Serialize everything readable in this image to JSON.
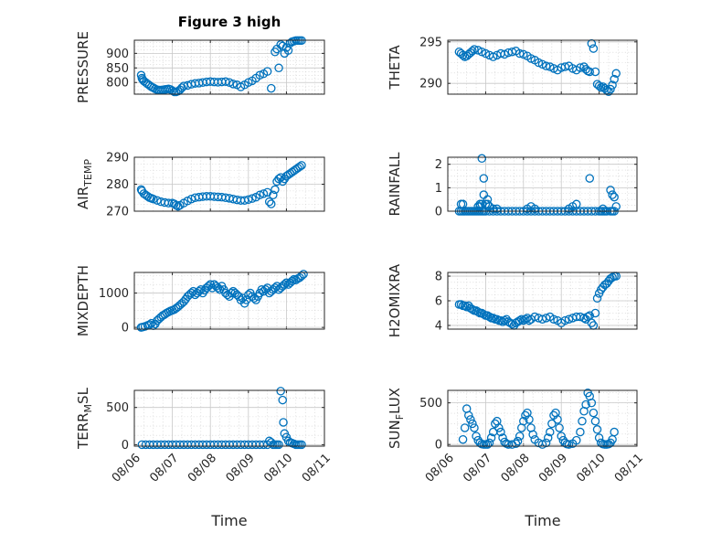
{
  "figure_title": "Figure 3 high",
  "x_axis_label": "Time",
  "x_tick_labels": [
    "08/06",
    "08/07",
    "08/08",
    "08/09",
    "08/10",
    "08/11"
  ],
  "colors": {
    "marker": "#0072BD",
    "axis": "#262626",
    "grid": "#c8c8c8"
  },
  "chart_data": [
    {
      "type": "scatter",
      "title": "Figure 3 high",
      "ylabel": "PRESSURE",
      "ylabel_sub": "",
      "xlim": [
        0,
        5
      ],
      "ylim": [
        760,
        945
      ],
      "yticks": [
        800,
        850,
        900
      ],
      "ytick_labels": [
        "800",
        "850",
        "900"
      ],
      "x": [
        0.18,
        0.2,
        0.22,
        0.25,
        0.3,
        0.35,
        0.4,
        0.45,
        0.5,
        0.55,
        0.6,
        0.65,
        0.7,
        0.75,
        0.8,
        0.85,
        0.9,
        0.95,
        1.0,
        1.05,
        1.1,
        1.15,
        1.2,
        1.25,
        1.3,
        1.4,
        1.5,
        1.6,
        1.7,
        1.8,
        1.9,
        2.0,
        2.1,
        2.2,
        2.3,
        2.4,
        2.5,
        2.6,
        2.7,
        2.8,
        2.9,
        3.0,
        3.1,
        3.2,
        3.3,
        3.4,
        3.5,
        3.6,
        3.7,
        3.75,
        3.8,
        3.85,
        3.9,
        3.95,
        4.0,
        4.05,
        4.1,
        4.15,
        4.2,
        4.25,
        4.3,
        4.35,
        4.4
      ],
      "y": [
        825,
        815,
        810,
        805,
        800,
        795,
        790,
        785,
        782,
        778,
        775,
        774,
        774,
        775,
        776,
        777,
        778,
        776,
        772,
        768,
        768,
        770,
        775,
        782,
        788,
        790,
        794,
        797,
        798,
        800,
        802,
        803,
        802,
        801,
        802,
        803,
        800,
        795,
        792,
        785,
        792,
        800,
        806,
        815,
        825,
        830,
        838,
        780,
        905,
        915,
        850,
        930,
        925,
        900,
        920,
        910,
        935,
        940,
        942,
        944,
        944,
        944,
        944
      ]
    },
    {
      "type": "scatter",
      "title": "",
      "ylabel": "THETA",
      "ylabel_sub": "",
      "xlim": [
        0,
        5
      ],
      "ylim": [
        288.7,
        295.2
      ],
      "yticks": [
        290,
        295
      ],
      "ytick_labels": [
        "290",
        "295"
      ],
      "x": [
        0.3,
        0.35,
        0.4,
        0.45,
        0.5,
        0.55,
        0.6,
        0.65,
        0.7,
        0.8,
        0.9,
        1.0,
        1.1,
        1.2,
        1.3,
        1.4,
        1.5,
        1.6,
        1.7,
        1.8,
        1.9,
        2.0,
        2.1,
        2.2,
        2.3,
        2.4,
        2.5,
        2.6,
        2.7,
        2.8,
        2.9,
        3.0,
        3.1,
        3.2,
        3.3,
        3.4,
        3.5,
        3.6,
        3.65,
        3.7,
        3.75,
        3.8,
        3.85,
        3.9,
        3.95,
        4.0,
        4.05,
        4.1,
        4.15,
        4.2,
        4.25,
        4.3,
        4.35,
        4.4,
        4.45
      ],
      "y": [
        293.8,
        293.6,
        293.4,
        293.2,
        293.3,
        293.5,
        293.7,
        293.9,
        294.1,
        294.0,
        293.8,
        293.6,
        293.4,
        293.2,
        293.4,
        293.6,
        293.5,
        293.7,
        293.8,
        293.9,
        293.6,
        293.5,
        293.3,
        293.0,
        292.8,
        292.5,
        292.3,
        292.1,
        292.0,
        291.8,
        291.6,
        291.9,
        292.0,
        292.1,
        291.8,
        291.6,
        291.9,
        292.0,
        291.7,
        291.5,
        291.4,
        294.8,
        294.2,
        291.4,
        289.9,
        289.7,
        289.5,
        289.6,
        289.4,
        289.2,
        289.0,
        289.3,
        289.8,
        290.5,
        291.2
      ]
    },
    {
      "type": "scatter",
      "title": "",
      "ylabel": "AIR",
      "ylabel_sub": "TEMP",
      "xlim": [
        0,
        5
      ],
      "ylim": [
        270,
        290
      ],
      "yticks": [
        270,
        280,
        290
      ],
      "ytick_labels": [
        "270",
        "280",
        "290"
      ],
      "x": [
        0.18,
        0.2,
        0.25,
        0.3,
        0.35,
        0.4,
        0.45,
        0.5,
        0.6,
        0.7,
        0.8,
        0.9,
        1.0,
        1.05,
        1.1,
        1.15,
        1.2,
        1.3,
        1.4,
        1.5,
        1.6,
        1.7,
        1.8,
        1.9,
        2.0,
        2.1,
        2.2,
        2.3,
        2.4,
        2.5,
        2.6,
        2.7,
        2.8,
        2.9,
        3.0,
        3.1,
        3.2,
        3.3,
        3.4,
        3.5,
        3.55,
        3.6,
        3.65,
        3.7,
        3.75,
        3.8,
        3.85,
        3.9,
        3.95,
        4.0,
        4.05,
        4.1,
        4.15,
        4.2,
        4.25,
        4.3,
        4.35,
        4.4
      ],
      "y": [
        278,
        277.5,
        276.5,
        276,
        275.5,
        275,
        274.8,
        274.5,
        274,
        273.5,
        273.2,
        273,
        273,
        272.7,
        272.2,
        271.8,
        272.2,
        273,
        273.8,
        274.5,
        275,
        275.2,
        275.4,
        275.5,
        275.5,
        275.4,
        275.3,
        275.2,
        275,
        274.8,
        274.5,
        274.2,
        274,
        274,
        274.3,
        274.7,
        275.2,
        276,
        276.5,
        277,
        273.5,
        272.7,
        276,
        278,
        281,
        282,
        282.5,
        281,
        282,
        283,
        283.5,
        284,
        284.5,
        285,
        285.5,
        286,
        286.5,
        287
      ]
    },
    {
      "type": "scatter",
      "title": "",
      "ylabel": "RAINFALL",
      "ylabel_sub": "",
      "xlim": [
        0,
        5
      ],
      "ylim": [
        0,
        2.3
      ],
      "yticks": [
        0,
        1,
        2
      ],
      "ytick_labels": [
        "0",
        "1",
        "2"
      ],
      "x": [
        0.3,
        0.35,
        0.4,
        0.45,
        0.5,
        0.55,
        0.6,
        0.65,
        0.7,
        0.75,
        0.8,
        0.85,
        0.9,
        0.95,
        1.0,
        1.1,
        1.2,
        1.3,
        1.4,
        1.5,
        1.6,
        1.7,
        1.8,
        1.9,
        2.0,
        2.1,
        2.2,
        2.3,
        2.4,
        2.5,
        2.6,
        2.7,
        2.8,
        2.9,
        3.0,
        3.1,
        3.2,
        3.3,
        3.4,
        3.5,
        3.6,
        3.7,
        3.8,
        3.9,
        4.0,
        4.05,
        4.1,
        4.15,
        4.2,
        4.3,
        4.35,
        4.4,
        0.35,
        0.4,
        0.8,
        0.85,
        0.9,
        0.95,
        1.0,
        1.05,
        1.1,
        1.2,
        1.3,
        2.1,
        2.2,
        2.3,
        3.2,
        3.3,
        3.4,
        3.75,
        4.3,
        4.35,
        4.4,
        4.45,
        4.1,
        0.9,
        0.95,
        1.05,
        0.85
      ],
      "y": [
        0,
        0,
        0,
        0,
        0,
        0,
        0,
        0,
        0,
        0,
        0,
        0,
        0,
        0,
        0,
        0,
        0,
        0,
        0,
        0,
        0,
        0,
        0,
        0,
        0,
        0,
        0,
        0,
        0,
        0,
        0,
        0,
        0,
        0,
        0,
        0,
        0,
        0,
        0,
        0,
        0,
        0,
        0,
        0,
        0,
        0,
        0,
        0,
        0,
        0,
        0,
        0,
        0.3,
        0.3,
        0.2,
        0.3,
        2.25,
        1.4,
        0.3,
        0.5,
        0.2,
        0.1,
        0.1,
        0.1,
        0.2,
        0.1,
        0.1,
        0.2,
        0.3,
        1.4,
        0.9,
        0.7,
        0.6,
        0.2,
        0.1,
        0.3,
        0.7,
        0.3,
        0.2
      ]
    },
    {
      "type": "scatter",
      "title": "",
      "ylabel": "MIXDEPTH",
      "ylabel_sub": "",
      "xlim": [
        0,
        5
      ],
      "ylim": [
        -50,
        1600
      ],
      "yticks": [
        0,
        1000
      ],
      "ytick_labels": [
        "0",
        "1000"
      ],
      "x": [
        0.18,
        0.22,
        0.28,
        0.35,
        0.4,
        0.45,
        0.5,
        0.55,
        0.6,
        0.65,
        0.7,
        0.75,
        0.8,
        0.85,
        0.9,
        0.95,
        1.0,
        1.05,
        1.1,
        1.15,
        1.2,
        1.25,
        1.3,
        1.35,
        1.4,
        1.45,
        1.5,
        1.55,
        1.6,
        1.65,
        1.7,
        1.75,
        1.8,
        1.85,
        1.9,
        1.95,
        2.0,
        2.05,
        2.1,
        2.15,
        2.2,
        2.25,
        2.3,
        2.35,
        2.4,
        2.45,
        2.5,
        2.55,
        2.6,
        2.65,
        2.7,
        2.75,
        2.8,
        2.85,
        2.9,
        2.95,
        3.0,
        3.05,
        3.1,
        3.15,
        3.2,
        3.25,
        3.3,
        3.35,
        3.4,
        3.45,
        3.5,
        3.55,
        3.6,
        3.65,
        3.7,
        3.75,
        3.8,
        3.85,
        3.9,
        3.95,
        4.0,
        4.05,
        4.1,
        4.15,
        4.2,
        4.25,
        4.3,
        4.35,
        4.4,
        4.45
      ],
      "y": [
        0,
        10,
        30,
        60,
        80,
        120,
        50,
        100,
        200,
        250,
        300,
        350,
        380,
        420,
        450,
        480,
        500,
        520,
        560,
        600,
        650,
        700,
        750,
        820,
        900,
        950,
        1000,
        1050,
        950,
        1000,
        1050,
        1100,
        1000,
        1080,
        1150,
        1200,
        1250,
        1150,
        1250,
        1200,
        1150,
        1100,
        1200,
        1100,
        1000,
        950,
        900,
        1000,
        1050,
        1000,
        950,
        900,
        800,
        850,
        700,
        800,
        950,
        1000,
        900,
        850,
        800,
        900,
        1000,
        1100,
        1050,
        1100,
        1150,
        1000,
        1050,
        1100,
        1150,
        1200,
        1100,
        1150,
        1200,
        1250,
        1300,
        1250,
        1300,
        1350,
        1400,
        1380,
        1420,
        1450,
        1500,
        1550
      ]
    },
    {
      "type": "scatter",
      "title": "",
      "ylabel": "H2OMIXRA",
      "ylabel_sub": "",
      "xlim": [
        0,
        5
      ],
      "ylim": [
        3.7,
        8.3
      ],
      "yticks": [
        4,
        6,
        8
      ],
      "ytick_labels": [
        "4",
        "6",
        "8"
      ],
      "x": [
        0.3,
        0.35,
        0.4,
        0.45,
        0.5,
        0.55,
        0.6,
        0.65,
        0.7,
        0.75,
        0.8,
        0.85,
        0.9,
        0.95,
        1.0,
        1.05,
        1.1,
        1.15,
        1.2,
        1.25,
        1.3,
        1.35,
        1.4,
        1.45,
        1.5,
        1.55,
        1.6,
        1.65,
        1.7,
        1.75,
        1.8,
        1.85,
        1.9,
        1.95,
        2.0,
        2.05,
        2.1,
        2.15,
        2.2,
        2.3,
        2.4,
        2.5,
        2.6,
        2.7,
        2.8,
        2.9,
        3.0,
        3.1,
        3.2,
        3.3,
        3.4,
        3.5,
        3.6,
        3.65,
        3.7,
        3.75,
        3.8,
        3.85,
        3.9,
        3.95,
        4.0,
        4.05,
        4.1,
        4.15,
        4.2,
        4.25,
        4.3,
        4.35,
        4.4,
        4.45
      ],
      "y": [
        5.7,
        5.7,
        5.6,
        5.6,
        5.5,
        5.6,
        5.4,
        5.3,
        5.2,
        5.2,
        5.1,
        5.0,
        5.0,
        4.9,
        4.8,
        4.8,
        4.7,
        4.6,
        4.6,
        4.5,
        4.5,
        4.4,
        4.4,
        4.3,
        4.4,
        4.5,
        4.3,
        4.2,
        4.1,
        4.0,
        4.2,
        4.3,
        4.4,
        4.5,
        4.4,
        4.5,
        4.6,
        4.4,
        4.5,
        4.7,
        4.6,
        4.5,
        4.6,
        4.7,
        4.5,
        4.4,
        4.2,
        4.4,
        4.5,
        4.6,
        4.7,
        4.7,
        4.6,
        4.5,
        4.7,
        4.8,
        4.2,
        4.0,
        5.0,
        6.2,
        6.6,
        6.9,
        7.1,
        7.3,
        7.4,
        7.6,
        7.8,
        7.9,
        8.0,
        8.0
      ]
    },
    {
      "type": "scatter",
      "title": "",
      "ylabel": "TERR",
      "ylabel_sub": "M",
      "ylabel_suffix": "SL",
      "xlim": [
        0,
        5
      ],
      "ylim": [
        -20,
        730
      ],
      "yticks": [
        0,
        500
      ],
      "ytick_labels": [
        "0",
        "500"
      ],
      "x": [
        0.2,
        0.3,
        0.4,
        0.5,
        0.6,
        0.7,
        0.8,
        0.9,
        1.0,
        1.1,
        1.2,
        1.3,
        1.4,
        1.5,
        1.6,
        1.7,
        1.8,
        1.9,
        2.0,
        2.1,
        2.2,
        2.3,
        2.4,
        2.5,
        2.6,
        2.7,
        2.8,
        2.9,
        3.0,
        3.1,
        3.2,
        3.3,
        3.4,
        3.5,
        3.55,
        3.6,
        3.65,
        3.7,
        3.75,
        3.8,
        3.85,
        3.9,
        3.92,
        3.95,
        4.0,
        4.05,
        4.1,
        4.15,
        4.2,
        4.25,
        4.3,
        4.35,
        4.4
      ],
      "y": [
        0,
        0,
        0,
        0,
        0,
        0,
        0,
        0,
        0,
        0,
        0,
        0,
        0,
        0,
        0,
        0,
        0,
        0,
        0,
        0,
        0,
        0,
        0,
        0,
        0,
        0,
        0,
        0,
        0,
        0,
        0,
        0,
        0,
        0,
        50,
        30,
        0,
        0,
        0,
        0,
        720,
        600,
        300,
        150,
        100,
        50,
        30,
        20,
        10,
        0,
        0,
        0,
        0
      ]
    },
    {
      "type": "scatter",
      "title": "",
      "ylabel": "SUN",
      "ylabel_sub": "F",
      "ylabel_suffix": "LUX",
      "xlim": [
        0,
        5
      ],
      "ylim": [
        -20,
        650
      ],
      "yticks": [
        0,
        500
      ],
      "ytick_labels": [
        "0",
        "500"
      ],
      "x": [
        0.4,
        0.45,
        0.5,
        0.55,
        0.6,
        0.65,
        0.7,
        0.75,
        0.8,
        0.85,
        0.9,
        0.95,
        1.0,
        1.05,
        1.1,
        1.15,
        1.2,
        1.25,
        1.3,
        1.35,
        1.4,
        1.45,
        1.5,
        1.55,
        1.6,
        1.7,
        1.8,
        1.85,
        1.9,
        1.95,
        2.0,
        2.05,
        2.1,
        2.15,
        2.2,
        2.25,
        2.3,
        2.4,
        2.5,
        2.6,
        2.65,
        2.7,
        2.75,
        2.8,
        2.85,
        2.9,
        2.95,
        3.0,
        3.05,
        3.1,
        3.15,
        3.2,
        3.3,
        3.4,
        3.5,
        3.55,
        3.6,
        3.65,
        3.7,
        3.75,
        3.8,
        3.85,
        3.9,
        3.95,
        4.0,
        4.05,
        4.1,
        4.15,
        4.2,
        4.25,
        4.3,
        4.35,
        4.4
      ],
      "y": [
        60,
        200,
        430,
        350,
        300,
        250,
        200,
        100,
        50,
        20,
        5,
        0,
        0,
        0,
        20,
        80,
        150,
        250,
        280,
        200,
        150,
        80,
        30,
        10,
        0,
        0,
        10,
        40,
        100,
        200,
        280,
        350,
        380,
        300,
        200,
        120,
        60,
        20,
        0,
        20,
        80,
        150,
        250,
        350,
        380,
        300,
        200,
        100,
        50,
        20,
        5,
        0,
        10,
        50,
        150,
        280,
        400,
        480,
        620,
        580,
        500,
        380,
        280,
        180,
        80,
        20,
        5,
        0,
        0,
        5,
        20,
        60,
        150
      ]
    }
  ]
}
